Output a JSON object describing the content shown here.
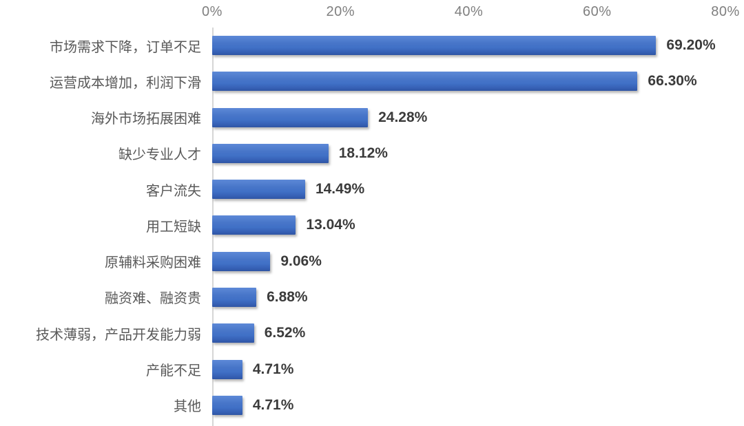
{
  "chart_data": {
    "type": "bar",
    "orientation": "horizontal",
    "title": "",
    "xlabel": "",
    "ylabel": "",
    "categories": [
      "市场需求下降，订单不足",
      "运营成本增加，利润下滑",
      "海外市场拓展困难",
      "缺少专业人才",
      "客户流失",
      "用工短缺",
      "原辅料采购困难",
      "融资难、融资贵",
      "技术薄弱，产品开发能力弱",
      "产能不足",
      "其他"
    ],
    "values": [
      69.2,
      66.3,
      24.28,
      18.12,
      14.49,
      13.04,
      9.06,
      6.88,
      6.52,
      4.71,
      4.71
    ],
    "value_labels": [
      "69.20%",
      "66.30%",
      "24.28%",
      "18.12%",
      "14.49%",
      "13.04%",
      "9.06%",
      "6.88%",
      "6.52%",
      "4.71%",
      "4.71%"
    ],
    "x_ticks": [
      "0%",
      "20%",
      "40%",
      "60%",
      "80%"
    ],
    "xlim": [
      0,
      80
    ],
    "axis_position": "top",
    "grid": false,
    "legend": null
  },
  "colors": {
    "bar_top": "#5d89d7",
    "bar_mid": "#4070c6",
    "bar_bottom": "#2f55a4",
    "axis_line": "#d6d6d6",
    "tick_label": "#7f7f7f",
    "category_label": "#595959",
    "value_label": "#3b3b3b",
    "background": "#ffffff"
  }
}
